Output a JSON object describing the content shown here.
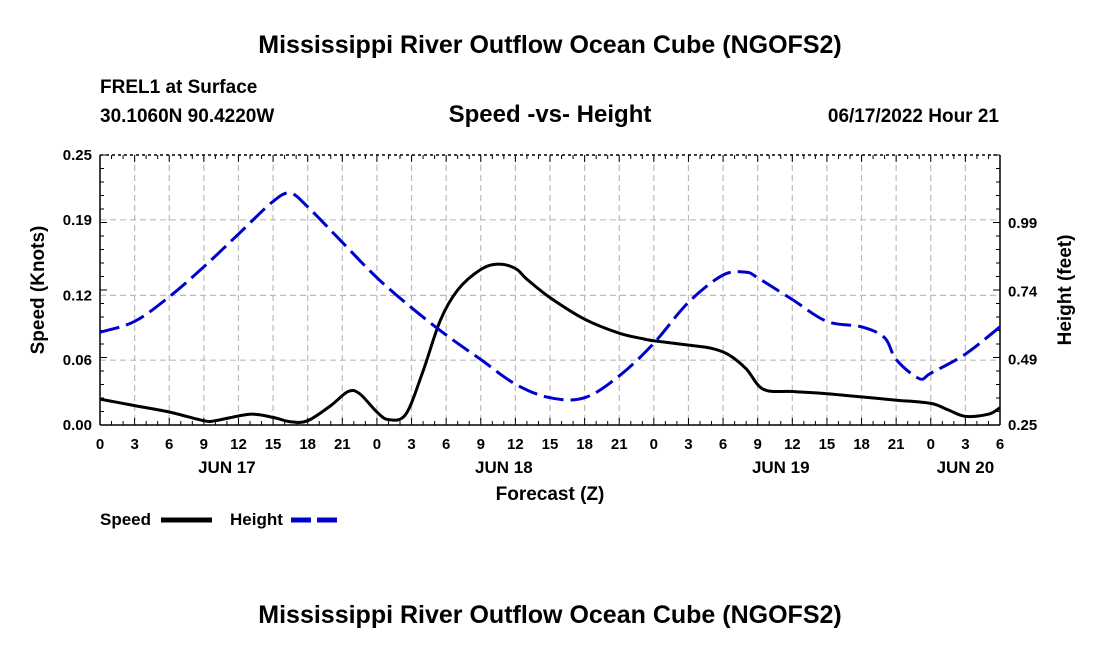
{
  "header": {
    "title": "Mississippi River Outflow Ocean Cube (NGOFS2)",
    "station": "FREL1 at Surface",
    "coords": "30.1060N  90.4220W",
    "plot_title": "Speed -vs- Height",
    "datetime": "06/17/2022 Hour 21"
  },
  "footer": {
    "title": "Mississippi River Outflow Ocean Cube (NGOFS2)"
  },
  "colors": {
    "speed": "#000000",
    "height": "#0000cc",
    "grid": "#bbbbbb"
  },
  "chart_data": {
    "type": "line",
    "title": "Speed -vs- Height",
    "xlabel": "Forecast (Z)",
    "ylabel": "Speed (Knots)",
    "y2label": "Height (feet)",
    "xlim": [
      0,
      78
    ],
    "ylim": [
      0,
      0.25
    ],
    "y2lim": [
      0.25,
      1.24
    ],
    "grid": true,
    "yticks": [
      0,
      0.06,
      0.12,
      0.19,
      0.25
    ],
    "yticklabels": [
      "0.00",
      "0.06",
      "0.12",
      "0.19",
      "0.25"
    ],
    "y2ticks": [
      0.25,
      0.49,
      0.74,
      0.99
    ],
    "y2ticklabels": [
      "0.25",
      "0.49",
      "0.74",
      "0.99"
    ],
    "xticks": [
      0,
      3,
      6,
      9,
      12,
      15,
      18,
      21,
      24,
      27,
      30,
      33,
      36,
      39,
      42,
      45,
      48,
      51,
      54,
      57,
      60,
      63,
      66,
      69,
      72,
      75,
      78
    ],
    "xticklabels": [
      "0",
      "3",
      "6",
      "9",
      "12",
      "15",
      "18",
      "21",
      "0",
      "3",
      "6",
      "9",
      "12",
      "15",
      "18",
      "21",
      "0",
      "3",
      "6",
      "9",
      "12",
      "15",
      "18",
      "21",
      "0",
      "3",
      "6"
    ],
    "day_labels": [
      {
        "x": 11,
        "label": "JUN 17"
      },
      {
        "x": 35,
        "label": "JUN 18"
      },
      {
        "x": 59,
        "label": "JUN 19"
      },
      {
        "x": 75,
        "label": "JUN 20"
      }
    ],
    "legend": {
      "placement": "bottom-left",
      "entries": [
        "Speed",
        "Height"
      ]
    },
    "series": [
      {
        "name": "Speed",
        "axis": "left",
        "style": "solid",
        "x": [
          0,
          3,
          6,
          9,
          10,
          13,
          15,
          16.5,
          18,
          20,
          21.5,
          22.5,
          24,
          25,
          26.5,
          28,
          29.5,
          31,
          33,
          34.5,
          36,
          37,
          39,
          42,
          45,
          47,
          48,
          51,
          53,
          54.5,
          56,
          57.5,
          60,
          63,
          66,
          69,
          72,
          73.5,
          75,
          77,
          78
        ],
        "values": [
          0.024,
          0.018,
          0.012,
          0.004,
          0.004,
          0.01,
          0.007,
          0.003,
          0.004,
          0.018,
          0.031,
          0.029,
          0.012,
          0.005,
          0.01,
          0.05,
          0.097,
          0.125,
          0.144,
          0.149,
          0.145,
          0.135,
          0.118,
          0.098,
          0.085,
          0.08,
          0.078,
          0.074,
          0.071,
          0.065,
          0.052,
          0.033,
          0.031,
          0.029,
          0.026,
          0.023,
          0.02,
          0.014,
          0.008,
          0.01,
          0.016
        ]
      },
      {
        "name": "Height",
        "axis": "right",
        "style": "dashed",
        "x": [
          0,
          3,
          6,
          9,
          12,
          15,
          16.5,
          18,
          21,
          24,
          27,
          30,
          33,
          36,
          39,
          42,
          45,
          48,
          51,
          54,
          56,
          57,
          60,
          63,
          66,
          68,
          69,
          71,
          72,
          75,
          78
        ],
        "values": [
          0.59,
          0.63,
          0.72,
          0.83,
          0.95,
          1.07,
          1.1,
          1.05,
          0.92,
          0.79,
          0.68,
          0.58,
          0.49,
          0.4,
          0.35,
          0.35,
          0.43,
          0.55,
          0.7,
          0.8,
          0.81,
          0.79,
          0.71,
          0.63,
          0.61,
          0.57,
          0.49,
          0.42,
          0.44,
          0.51,
          0.61
        ]
      }
    ]
  }
}
